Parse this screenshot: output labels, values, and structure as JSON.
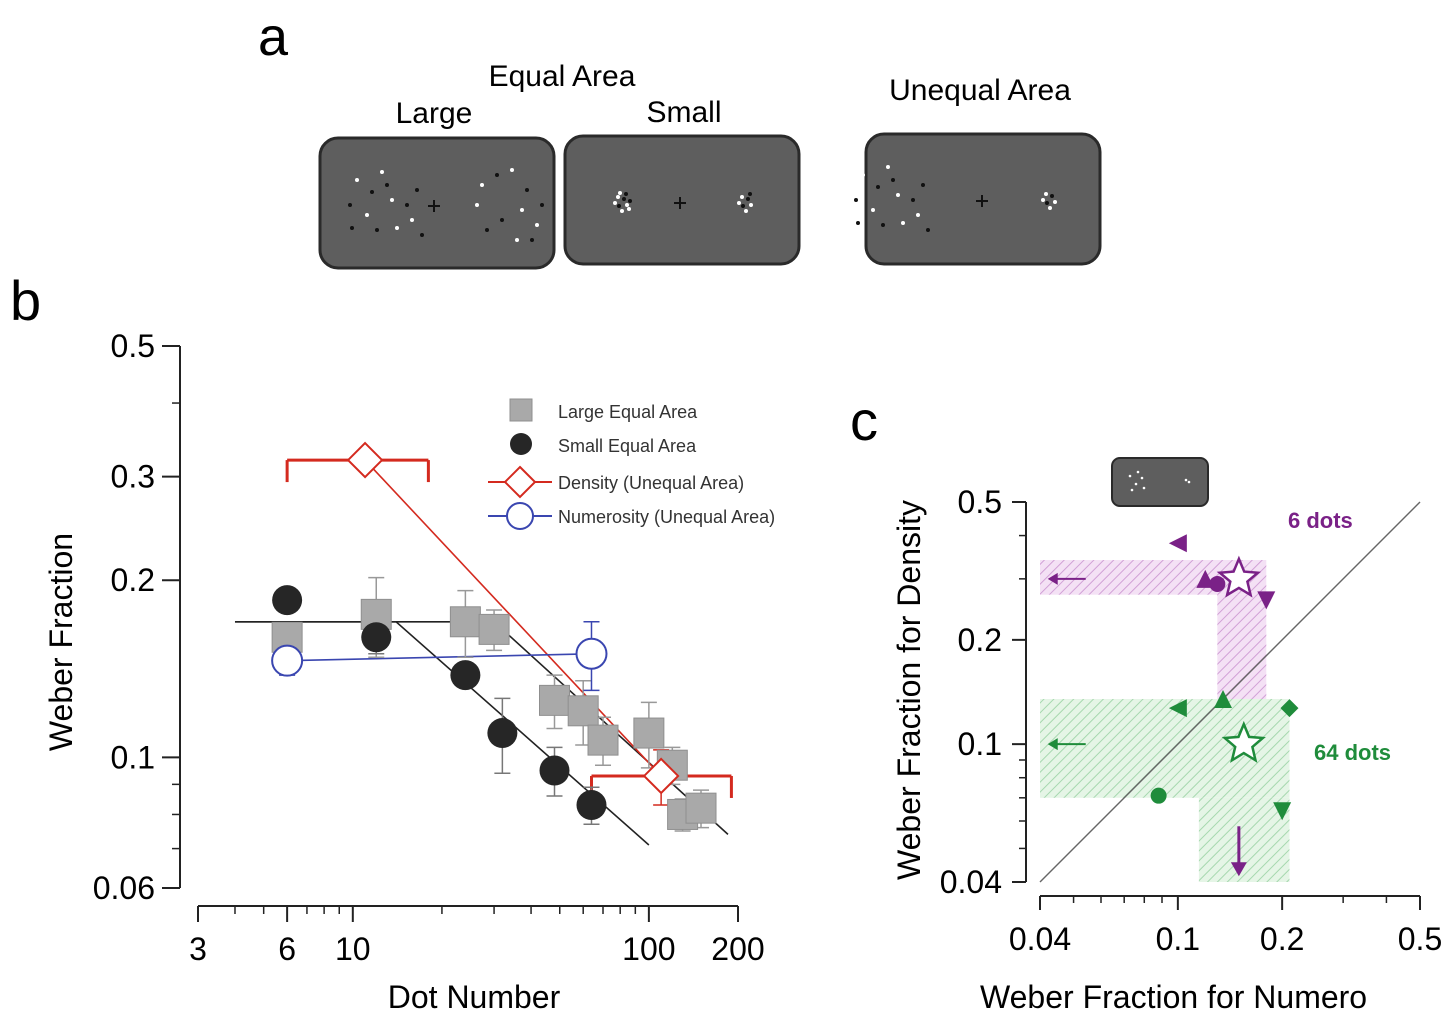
{
  "panel_a": {
    "letter": "a",
    "equal_area_label": "Equal Area",
    "large_label": "Large",
    "small_label": "Small",
    "unequal_area_label": "Unequal Area"
  },
  "panel_b": {
    "letter": "b"
  },
  "panel_c": {
    "letter": "c",
    "label_6": "6 dots",
    "label_64": "64 dots"
  },
  "colors": {
    "large": "#a9a9a9",
    "small": "#262626",
    "density": "#d42a1f",
    "numerosity": "#3a46b0",
    "purple": "#7a2187",
    "green": "#1f8c3b",
    "screen": "#5e5e5e"
  },
  "chart_data": [
    {
      "type": "scatter",
      "panel": "b",
      "xlabel": "Dot Number",
      "ylabel": "Weber Fraction",
      "xscale": "log",
      "yscale": "log",
      "xlim": [
        3,
        200
      ],
      "ylim": [
        0.06,
        0.5
      ],
      "xticks": [
        3,
        6,
        10,
        100,
        200
      ],
      "xtick_labels": [
        "3",
        "6",
        "10",
        "100",
        "200"
      ],
      "yticks": [
        0.06,
        0.1,
        0.2,
        0.3,
        0.5
      ],
      "ytick_labels": [
        "0.06",
        "0.1",
        "0.2",
        "0.3",
        "0.5"
      ],
      "legend_position": "top-right",
      "series": [
        {
          "name": "Large Equal Area",
          "marker": "square",
          "x": [
            6,
            12,
            24,
            30,
            48,
            60,
            70,
            100,
            120,
            130,
            150
          ],
          "y": [
            0.16,
            0.175,
            0.17,
            0.165,
            0.125,
            0.12,
            0.107,
            0.11,
            0.097,
            0.08,
            0.082
          ],
          "error": [
            0.005,
            0.027,
            0.022,
            0.013,
            0.013,
            0.015,
            0.01,
            0.014,
            0.007,
            0.005,
            0.006
          ]
        },
        {
          "name": "Small Equal Area",
          "marker": "circle",
          "x": [
            6,
            12,
            24,
            32,
            48,
            64
          ],
          "y": [
            0.185,
            0.16,
            0.138,
            0.11,
            0.095,
            0.083
          ],
          "error": [
            0.005,
            0.01,
            0.005,
            0.016,
            0.009,
            0.006
          ]
        },
        {
          "name": "Density (Unequal Area)",
          "marker": "diamond",
          "x": [
            11,
            110
          ],
          "y": [
            0.32,
            0.093
          ],
          "error": [
            0.005,
            0.01
          ],
          "x_range": [
            [
              6,
              18
            ],
            [
              64,
              190
            ]
          ]
        },
        {
          "name": "Numerosity (Unequal Area)",
          "marker": "open-circle",
          "x": [
            6,
            64
          ],
          "y": [
            0.146,
            0.15
          ],
          "error": [
            0.008,
            0.02
          ]
        }
      ],
      "fit_lines": [
        {
          "series": "Large Equal Area",
          "x": [
            4,
            30,
            185
          ],
          "y": [
            0.17,
            0.17,
            0.074
          ]
        },
        {
          "series": "Small Equal Area",
          "x": [
            4,
            14,
            100
          ],
          "y": [
            0.17,
            0.17,
            0.071
          ]
        },
        {
          "series": "Density (Unequal Area)",
          "x": [
            11,
            110
          ],
          "y": [
            0.32,
            0.093
          ]
        },
        {
          "series": "Numerosity (Unequal Area)",
          "x": [
            6,
            64
          ],
          "y": [
            0.146,
            0.15
          ]
        }
      ]
    },
    {
      "type": "scatter",
      "panel": "c",
      "xlabel": "Weber Fraction for Numero",
      "ylabel": "Weber Fraction for Density",
      "xscale": "log",
      "yscale": "log",
      "xlim": [
        0.04,
        0.5
      ],
      "ylim": [
        0.04,
        0.5
      ],
      "xticks": [
        0.04,
        0.1,
        0.2,
        0.5
      ],
      "xtick_labels": [
        "0.04",
        "0.1",
        "0.2",
        "0.5"
      ],
      "yticks": [
        0.04,
        0.1,
        0.2,
        0.5
      ],
      "ytick_labels": [
        "0.04",
        "0.1",
        "0.2",
        "0.5"
      ],
      "reference_line": "identity",
      "series": [
        {
          "name": "6 dots",
          "color": "purple",
          "points": [
            {
              "marker": "triangle-left",
              "x": 0.1,
              "y": 0.38
            },
            {
              "marker": "triangle-up",
              "x": 0.12,
              "y": 0.3
            },
            {
              "marker": "circle",
              "x": 0.13,
              "y": 0.29
            },
            {
              "marker": "triangle-down",
              "x": 0.18,
              "y": 0.26
            },
            {
              "marker": "arrow-left",
              "x": 0.045,
              "y": 0.3
            },
            {
              "marker": "arrow-down",
              "x": 0.15,
              "y": 0.045
            }
          ],
          "mean": {
            "x": 0.15,
            "y": 0.3
          },
          "band_x": [
            0.13,
            0.18
          ],
          "band_y": [
            0.27,
            0.34
          ]
        },
        {
          "name": "64 dots",
          "color": "green",
          "points": [
            {
              "marker": "triangle-left",
              "x": 0.1,
              "y": 0.127
            },
            {
              "marker": "triangle-up",
              "x": 0.135,
              "y": 0.135
            },
            {
              "marker": "diamond",
              "x": 0.21,
              "y": 0.127
            },
            {
              "marker": "circle",
              "x": 0.088,
              "y": 0.071
            },
            {
              "marker": "triangle-down",
              "x": 0.2,
              "y": 0.064
            },
            {
              "marker": "arrow-left",
              "x": 0.045,
              "y": 0.1
            }
          ],
          "mean": {
            "x": 0.155,
            "y": 0.1
          },
          "band_x": [
            0.115,
            0.21
          ],
          "band_y": [
            0.07,
            0.135
          ]
        }
      ]
    }
  ]
}
